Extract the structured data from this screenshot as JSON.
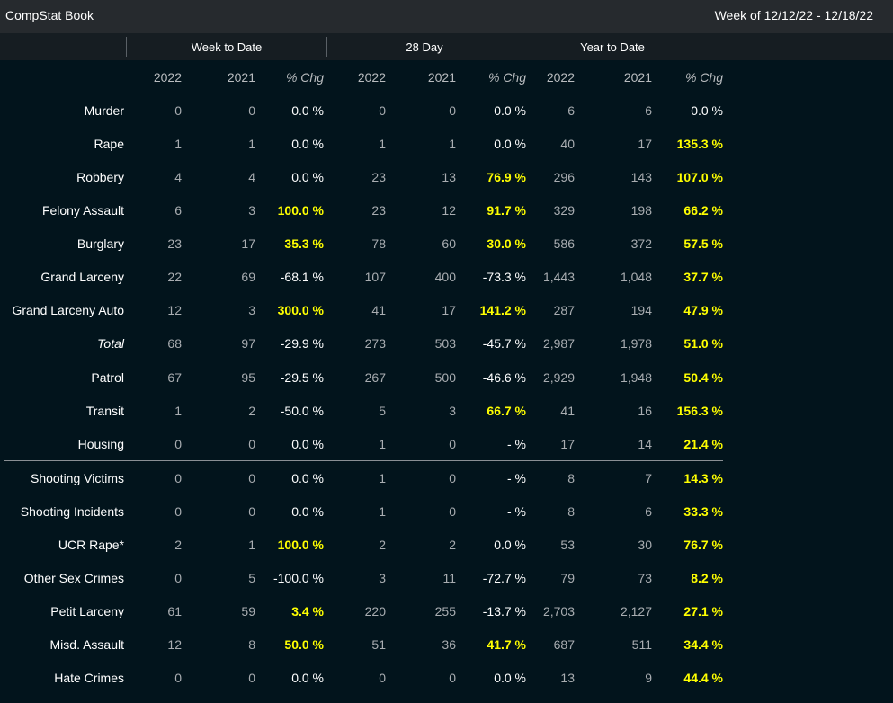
{
  "header": {
    "title": "CompStat Book",
    "week_range": "Week of 12/12/22 - 12/18/22"
  },
  "groups": [
    "Week to Date",
    "28 Day",
    "Year to Date"
  ],
  "columns": [
    "2022",
    "2021",
    "% Chg",
    "2022",
    "2021",
    "% Chg",
    "2022",
    "2021",
    "% Chg"
  ],
  "rows": [
    {
      "label": "Murder",
      "values": [
        "0",
        "0",
        "0.0 %",
        "0",
        "0",
        "0.0 %",
        "6",
        "6",
        "0.0 %"
      ]
    },
    {
      "label": "Rape",
      "values": [
        "1",
        "1",
        "0.0 %",
        "1",
        "1",
        "0.0 %",
        "40",
        "17",
        "135.3 %"
      ]
    },
    {
      "label": "Robbery",
      "values": [
        "4",
        "4",
        "0.0 %",
        "23",
        "13",
        "76.9 %",
        "296",
        "143",
        "107.0 %"
      ]
    },
    {
      "label": "Felony Assault",
      "values": [
        "6",
        "3",
        "100.0 %",
        "23",
        "12",
        "91.7 %",
        "329",
        "198",
        "66.2 %"
      ]
    },
    {
      "label": "Burglary",
      "values": [
        "23",
        "17",
        "35.3 %",
        "78",
        "60",
        "30.0 %",
        "586",
        "372",
        "57.5 %"
      ]
    },
    {
      "label": "Grand Larceny",
      "values": [
        "22",
        "69",
        "-68.1 %",
        "107",
        "400",
        "-73.3 %",
        "1,443",
        "1,048",
        "37.7 %"
      ]
    },
    {
      "label": "Grand Larceny Auto",
      "values": [
        "12",
        "3",
        "300.0 %",
        "41",
        "17",
        "141.2 %",
        "287",
        "194",
        "47.9 %"
      ]
    },
    {
      "label": "Total",
      "values": [
        "68",
        "97",
        "-29.9 %",
        "273",
        "503",
        "-45.7 %",
        "2,987",
        "1,978",
        "51.0 %"
      ]
    },
    {
      "label": "Patrol",
      "values": [
        "67",
        "95",
        "-29.5 %",
        "267",
        "500",
        "-46.6 %",
        "2,929",
        "1,948",
        "50.4 %"
      ]
    },
    {
      "label": "Transit",
      "values": [
        "1",
        "2",
        "-50.0 %",
        "5",
        "3",
        "66.7 %",
        "41",
        "16",
        "156.3 %"
      ]
    },
    {
      "label": "Housing",
      "values": [
        "0",
        "0",
        "0.0 %",
        "1",
        "0",
        "- %",
        "17",
        "14",
        "21.4 %"
      ]
    },
    {
      "label": "Shooting Victims",
      "values": [
        "0",
        "0",
        "0.0 %",
        "1",
        "0",
        "- %",
        "8",
        "7",
        "14.3 %"
      ]
    },
    {
      "label": "Shooting Incidents",
      "values": [
        "0",
        "0",
        "0.0 %",
        "1",
        "0",
        "- %",
        "8",
        "6",
        "33.3 %"
      ]
    },
    {
      "label": "UCR Rape*",
      "values": [
        "2",
        "1",
        "100.0 %",
        "2",
        "2",
        "0.0 %",
        "53",
        "30",
        "76.7 %"
      ]
    },
    {
      "label": "Other Sex Crimes",
      "values": [
        "0",
        "5",
        "-100.0 %",
        "3",
        "11",
        "-72.7 %",
        "79",
        "73",
        "8.2 %"
      ]
    },
    {
      "label": "Petit Larceny",
      "values": [
        "61",
        "59",
        "3.4 %",
        "220",
        "255",
        "-13.7 %",
        "2,703",
        "2,127",
        "27.1 %"
      ]
    },
    {
      "label": "Misd. Assault",
      "values": [
        "12",
        "8",
        "50.0 %",
        "51",
        "36",
        "41.7 %",
        "687",
        "511",
        "34.4 %"
      ]
    },
    {
      "label": "Hate Crimes",
      "values": [
        "0",
        "0",
        "0.0 %",
        "0",
        "0",
        "0.0 %",
        "13",
        "9",
        "44.4 %"
      ]
    }
  ],
  "colors": {
    "background": "#02141c",
    "titlebar": "#262a2e",
    "groupbar": "#161d22",
    "highlight": "#ffff00"
  }
}
